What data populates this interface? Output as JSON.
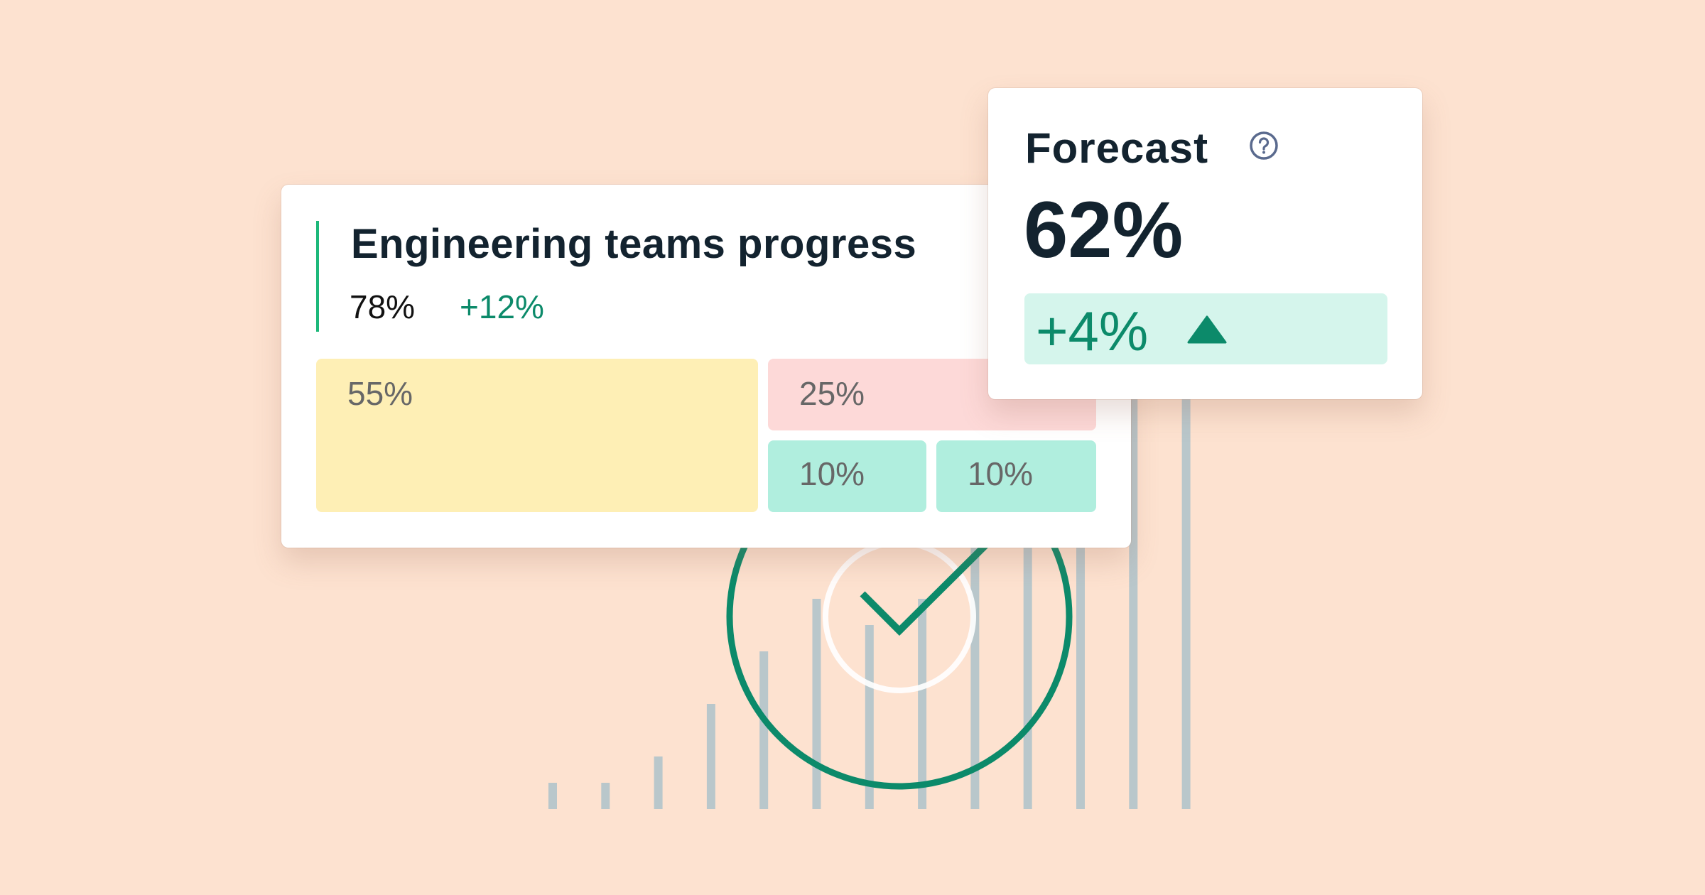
{
  "background_color": "#FDE2D0",
  "decoration": {
    "bars": [
      1,
      1,
      2,
      4,
      6,
      8,
      7,
      8,
      14,
      16,
      18,
      22,
      22
    ],
    "bar_color": "#B9C7CB",
    "ring_color": "#0C8A6A",
    "check_icon": "checkmark-icon"
  },
  "progress_card": {
    "title": "Engineering teams progress",
    "value": "78%",
    "delta": "+12%",
    "accent_color": "#1DB87A",
    "tiles": [
      {
        "label": "55%",
        "color": "#FEEFB5"
      },
      {
        "label": "25%",
        "color": "#FDD9D8"
      },
      {
        "label": "10%",
        "color": "#B0EEDE"
      },
      {
        "label": "10%",
        "color": "#B0EEDE"
      }
    ]
  },
  "forecast_card": {
    "title": "Forecast",
    "help_icon": "question-circle-icon",
    "value": "62%",
    "change": "+4%",
    "change_icon": "triangle-up-icon",
    "change_color": "#0C8A6A"
  }
}
